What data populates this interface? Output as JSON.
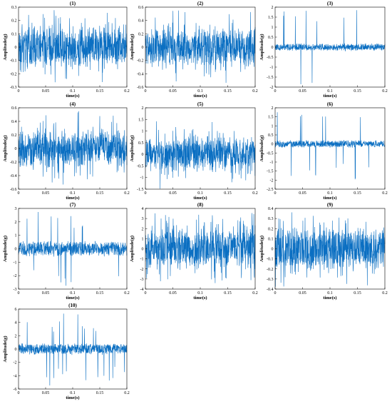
{
  "figure": {
    "signal_color": "#0b6fc2",
    "axis_color": "#000000"
  },
  "chart_data": [
    {
      "type": "line",
      "title": "(1)",
      "xlabel": "time(s)",
      "ylabel": "Amplitude(g)",
      "xlim": [
        0,
        0.2
      ],
      "ylim": [
        -0.3,
        0.3
      ],
      "xticks": [
        0,
        0.05,
        0.1,
        0.15,
        0.2
      ],
      "xtick_labels": [
        "0",
        "0.05",
        "0.1",
        "0.15",
        "0.2"
      ],
      "yticks": [
        -0.3,
        -0.2,
        -0.1,
        0,
        0.1,
        0.2,
        0.3
      ],
      "ytick_labels": [
        "-0.3",
        "-0.2",
        "-0.1",
        "0",
        "0.1",
        "0.2",
        "0.3"
      ],
      "signal": {
        "style": "dense",
        "band": 0.12,
        "peak": 0.28,
        "spike_rate": 0.02
      }
    },
    {
      "type": "line",
      "title": "(2)",
      "xlabel": "time(s)",
      "ylabel": "Amplitude(g)",
      "xlim": [
        0,
        0.2
      ],
      "ylim": [
        -0.6,
        0.6
      ],
      "xticks": [
        0,
        0.05,
        0.1,
        0.15,
        0.2
      ],
      "xtick_labels": [
        "0",
        "0.05",
        "0.1",
        "0.15",
        "0.2"
      ],
      "yticks": [
        -0.6,
        -0.4,
        -0.2,
        0,
        0.2,
        0.4,
        0.6
      ],
      "ytick_labels": [
        "-0.6",
        "-0.4",
        "-0.2",
        "0",
        "0.2",
        "0.4",
        "0.6"
      ],
      "signal": {
        "style": "dense",
        "band": 0.22,
        "peak": 0.55,
        "spike_rate": 0.02
      }
    },
    {
      "type": "line",
      "title": "(3)",
      "xlabel": "time(s)",
      "ylabel": "Amplitude(g)",
      "xlim": [
        0,
        0.2
      ],
      "ylim": [
        -2,
        2
      ],
      "xticks": [
        0,
        0.05,
        0.1,
        0.15,
        0.2
      ],
      "xtick_labels": [
        "0",
        "0.05",
        "0.1",
        "0.15",
        "0.2"
      ],
      "yticks": [
        -2,
        -1.5,
        -1,
        -0.5,
        0,
        0.5,
        1,
        1.5,
        2
      ],
      "ytick_labels": [
        "-2",
        "-1.5",
        "-1",
        "-0.5",
        "0",
        "0.5",
        "1",
        "1.5",
        "2"
      ],
      "signal": {
        "style": "impulsive",
        "band": 0.2,
        "peak": 1.95,
        "spike_rate": 0.015
      }
    },
    {
      "type": "line",
      "title": "(4)",
      "xlabel": "time(s)",
      "ylabel": "Amplitude(g)",
      "xlim": [
        0,
        0.2
      ],
      "ylim": [
        -0.6,
        0.6
      ],
      "xticks": [
        0,
        0.05,
        0.1,
        0.15,
        0.2
      ],
      "xtick_labels": [
        "0",
        "0.05",
        "0.1",
        "0.15",
        "0.2"
      ],
      "yticks": [
        -0.6,
        -0.4,
        -0.2,
        0,
        0.2,
        0.4,
        0.6
      ],
      "ytick_labels": [
        "-0.6",
        "-0.4",
        "-0.2",
        "0",
        "0.2",
        "0.4",
        "0.6"
      ],
      "signal": {
        "style": "dense",
        "band": 0.22,
        "peak": 0.55,
        "spike_rate": 0.02
      }
    },
    {
      "type": "line",
      "title": "(5)",
      "xlabel": "time(s)",
      "ylabel": "Amplitude(g)",
      "xlim": [
        0,
        0.2
      ],
      "ylim": [
        -1.5,
        2
      ],
      "xticks": [
        0,
        0.05,
        0.1,
        0.15,
        0.2
      ],
      "xtick_labels": [
        "0",
        "0.05",
        "0.1",
        "0.15",
        "0.2"
      ],
      "yticks": [
        -1.5,
        -1,
        -0.5,
        0,
        0.5,
        1,
        1.5,
        2
      ],
      "ytick_labels": [
        "-1.5",
        "-1",
        "-0.5",
        "0",
        "0.5",
        "1",
        "1.5",
        "2"
      ],
      "signal": {
        "style": "dense",
        "band": 0.55,
        "peak": 1.5,
        "spike_rate": 0.02
      }
    },
    {
      "type": "line",
      "title": "(6)",
      "xlabel": "time(s)",
      "ylabel": "Amplitude(g)",
      "xlim": [
        0,
        0.2
      ],
      "ylim": [
        -2.5,
        2
      ],
      "xticks": [
        0,
        0.05,
        0.1,
        0.15,
        0.2
      ],
      "xtick_labels": [
        "0",
        "0.05",
        "0.1",
        "0.15",
        "0.2"
      ],
      "yticks": [
        -2.5,
        -2,
        -1.5,
        -1,
        -0.5,
        0,
        0.5,
        1,
        1.5,
        2
      ],
      "ytick_labels": [
        "-2.5",
        "-2",
        "-1.5",
        "-1",
        "-0.5",
        "0",
        "0.5",
        "1",
        "1.5",
        "2"
      ],
      "signal": {
        "style": "impulsive",
        "band": 0.22,
        "peak": 2.0,
        "spike_rate": 0.025
      }
    },
    {
      "type": "line",
      "title": "(7)",
      "xlabel": "time(s)",
      "ylabel": "Amplitude(g)",
      "xlim": [
        0,
        0.2
      ],
      "ylim": [
        -3,
        3
      ],
      "xticks": [
        0,
        0.05,
        0.1,
        0.15,
        0.2
      ],
      "xtick_labels": [
        "0",
        "0.05",
        "0.1",
        "0.15",
        "0.2"
      ],
      "yticks": [
        -3,
        -2,
        -1,
        0,
        1,
        2,
        3
      ],
      "ytick_labels": [
        "-3",
        "-2",
        "-1",
        "0",
        "1",
        "2",
        "3"
      ],
      "signal": {
        "style": "impulsive",
        "band": 0.6,
        "peak": 2.8,
        "spike_rate": 0.03
      }
    },
    {
      "type": "line",
      "title": "(8)",
      "xlabel": "time(s)",
      "ylabel": "Amplitude(g)",
      "xlim": [
        0,
        0.2
      ],
      "ylim": [
        -4,
        4
      ],
      "xticks": [
        0,
        0.05,
        0.1,
        0.15,
        0.2
      ],
      "xtick_labels": [
        "0",
        "0.05",
        "0.1",
        "0.15",
        "0.2"
      ],
      "yticks": [
        -4,
        -3,
        -2,
        -1,
        0,
        1,
        2,
        3,
        4
      ],
      "ytick_labels": [
        "-4",
        "-3",
        "-2",
        "-1",
        "0",
        "1",
        "2",
        "3",
        "4"
      ],
      "signal": {
        "style": "dense",
        "band": 1.6,
        "peak": 3.6,
        "spike_rate": 0.05
      }
    },
    {
      "type": "line",
      "title": "(9)",
      "xlabel": "time(s)",
      "ylabel": "Amplitude(g)",
      "xlim": [
        0,
        0.2
      ],
      "ylim": [
        -0.4,
        0.4
      ],
      "xticks": [
        0,
        0.05,
        0.1,
        0.15,
        0.2
      ],
      "xtick_labels": [
        "0",
        "0.05",
        "0.1",
        "0.15",
        "0.2"
      ],
      "yticks": [
        -0.4,
        -0.3,
        -0.2,
        -0.1,
        0,
        0.1,
        0.2,
        0.3,
        0.4
      ],
      "ytick_labels": [
        "-0.4",
        "-0.3",
        "-0.2",
        "-0.1",
        "0",
        "0.1",
        "0.2",
        "0.3",
        "0.4"
      ],
      "signal": {
        "style": "dense",
        "band": 0.17,
        "peak": 0.38,
        "spike_rate": 0.02
      }
    },
    {
      "type": "line",
      "title": "(10)",
      "xlabel": "time(s)",
      "ylabel": "Amplitude(g)",
      "xlim": [
        0,
        0.2
      ],
      "ylim": [
        -6,
        6
      ],
      "xticks": [
        0,
        0.05,
        0.1,
        0.15,
        0.2
      ],
      "xtick_labels": [
        "0",
        "0.05",
        "0.1",
        "0.15",
        "0.2"
      ],
      "yticks": [
        -6,
        -4,
        -2,
        0,
        2,
        4,
        6
      ],
      "ytick_labels": [
        "-6",
        "-4",
        "-2",
        "0",
        "2",
        "4",
        "6"
      ],
      "signal": {
        "style": "impulsive",
        "band": 0.9,
        "peak": 5.5,
        "spike_rate": 0.03
      }
    }
  ]
}
